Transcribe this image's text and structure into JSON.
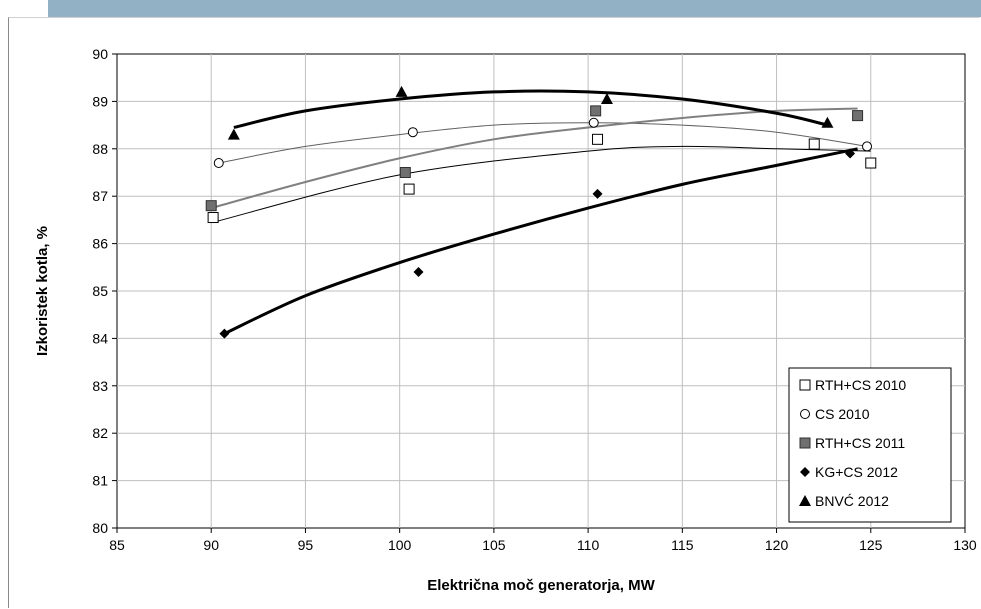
{
  "chart_data": {
    "type": "scatter",
    "xlabel": "Električna moč generatorja, MW",
    "ylabel": "Izkoristek kotla, %",
    "xlim": [
      85,
      130
    ],
    "ylim": [
      80,
      90
    ],
    "xticks": [
      85,
      90,
      95,
      100,
      105,
      110,
      115,
      120,
      125,
      130
    ],
    "yticks": [
      80,
      81,
      82,
      83,
      84,
      85,
      86,
      87,
      88,
      89,
      90
    ],
    "grid": true,
    "legend_position": "bottom-right",
    "series": [
      {
        "name": "RTH+CS 2010",
        "marker": "square-open",
        "points": [
          [
            90.1,
            86.55
          ],
          [
            100.5,
            87.15
          ],
          [
            110.5,
            88.2
          ],
          [
            122.0,
            88.1
          ],
          [
            125.0,
            87.7
          ]
        ],
        "trend": [
          [
            90.1,
            86.45
          ],
          [
            100,
            87.45
          ],
          [
            110,
            87.95
          ],
          [
            115,
            88.05
          ],
          [
            120,
            88.0
          ],
          [
            125,
            87.95
          ]
        ],
        "trend_color": "#000000",
        "trend_width": 1
      },
      {
        "name": "CS 2010",
        "marker": "circle-open",
        "points": [
          [
            90.4,
            87.7
          ],
          [
            100.7,
            88.35
          ],
          [
            110.3,
            88.55
          ],
          [
            124.8,
            88.05
          ]
        ],
        "trend": [
          [
            90.4,
            87.7
          ],
          [
            95,
            88.05
          ],
          [
            100,
            88.3
          ],
          [
            105,
            88.5
          ],
          [
            110,
            88.55
          ],
          [
            115,
            88.5
          ],
          [
            120,
            88.35
          ],
          [
            124.8,
            88.05
          ]
        ],
        "trend_color": "#606060",
        "trend_width": 1
      },
      {
        "name": "RTH+CS 2011",
        "marker": "square-filled",
        "points": [
          [
            90.0,
            86.8
          ],
          [
            100.3,
            87.5
          ],
          [
            110.4,
            88.8
          ],
          [
            124.3,
            88.7
          ]
        ],
        "trend": [
          [
            90.0,
            86.75
          ],
          [
            95,
            87.3
          ],
          [
            100,
            87.8
          ],
          [
            105,
            88.2
          ],
          [
            110,
            88.45
          ],
          [
            115,
            88.65
          ],
          [
            120,
            88.8
          ],
          [
            124.3,
            88.85
          ]
        ],
        "trend_color": "#808080",
        "trend_width": 2
      },
      {
        "name": "KG+CS 2012",
        "marker": "diamond-filled",
        "points": [
          [
            90.7,
            84.1
          ],
          [
            101.0,
            85.4
          ],
          [
            110.5,
            87.05
          ],
          [
            123.9,
            87.9
          ]
        ],
        "trend": [
          [
            90.7,
            84.1
          ],
          [
            95,
            84.9
          ],
          [
            100,
            85.6
          ],
          [
            105,
            86.2
          ],
          [
            110,
            86.75
          ],
          [
            115,
            87.25
          ],
          [
            120,
            87.65
          ],
          [
            124.3,
            88.0
          ]
        ],
        "trend_color": "#000000",
        "trend_width": 3
      },
      {
        "name": "BNVĆ 2012",
        "marker": "triangle-filled",
        "points": [
          [
            91.2,
            88.3
          ],
          [
            100.1,
            89.2
          ],
          [
            111.0,
            89.05
          ],
          [
            122.7,
            88.55
          ]
        ],
        "trend": [
          [
            91.2,
            88.45
          ],
          [
            95,
            88.8
          ],
          [
            100,
            89.05
          ],
          [
            105,
            89.2
          ],
          [
            110,
            89.2
          ],
          [
            115,
            89.05
          ],
          [
            120,
            88.75
          ],
          [
            122.7,
            88.5
          ]
        ],
        "trend_color": "#000000",
        "trend_width": 3
      }
    ]
  }
}
